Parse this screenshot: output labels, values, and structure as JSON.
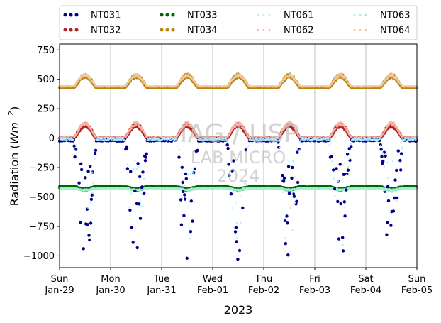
{
  "chart_data": {
    "type": "scatter",
    "xlabel": "2023",
    "ylabel": "Radiation (Wm^-2)",
    "ylabel_main": "Radiation (",
    "ylabel_unit": "Wm",
    "ylabel_exp": "−2",
    "ylabel_close": ")",
    "ylim": [
      -1100,
      800
    ],
    "xlim": [
      0,
      7
    ],
    "yticks": [
      750,
      500,
      250,
      0,
      -250,
      -500,
      -750,
      -1000
    ],
    "ytick_labels": [
      "750",
      "500",
      "250",
      "0",
      "−250",
      "−500",
      "−750",
      "−1000"
    ],
    "xticks": [
      {
        "x": 0,
        "day": "Sun",
        "date": "Jan-29"
      },
      {
        "x": 1,
        "day": "Mon",
        "date": "Jan-30"
      },
      {
        "x": 2,
        "day": "Tue",
        "date": "Jan-31"
      },
      {
        "x": 3,
        "day": "Wed",
        "date": "Feb-01"
      },
      {
        "x": 4,
        "day": "Thu",
        "date": "Feb-02"
      },
      {
        "x": 5,
        "day": "Fri",
        "date": "Feb-03"
      },
      {
        "x": 6,
        "day": "Sat",
        "date": "Feb-04"
      },
      {
        "x": 7,
        "day": "Sun",
        "date": "Feb-05"
      }
    ],
    "grid": "vertical",
    "legend_position": "top",
    "watermark": [
      "IAG / USP",
      "LAB MICRO",
      "2024"
    ],
    "series": [
      {
        "name": "NT031",
        "color": "#00008b",
        "style": "dot",
        "baseline": -15,
        "day_amp": -1000,
        "night_noise": 20
      },
      {
        "name": "NT032",
        "color": "#b22222",
        "style": "dot",
        "baseline": 0,
        "day_amp": 110,
        "night_noise": 5
      },
      {
        "name": "NT033",
        "color": "#006400",
        "style": "dot",
        "baseline": -415,
        "day_amp": -20,
        "night_noise": 12
      },
      {
        "name": "NT034",
        "color": "#b8860b",
        "style": "dot",
        "baseline": 430,
        "day_amp": 100,
        "night_noise": 6
      },
      {
        "name": "NT061",
        "color": "#b0f0ff",
        "style": "faint",
        "baseline": -10,
        "day_amp": -950,
        "night_noise": 20
      },
      {
        "name": "NT062",
        "color": "#f4b8a8",
        "style": "faint",
        "baseline": 5,
        "day_amp": 120,
        "night_noise": 5
      },
      {
        "name": "NT063",
        "color": "#a0f0d0",
        "style": "faint",
        "baseline": -425,
        "day_amp": -15,
        "night_noise": 12
      },
      {
        "name": "NT064",
        "color": "#f0c8a0",
        "style": "faint",
        "baseline": 440,
        "day_amp": 95,
        "night_noise": 6
      }
    ]
  }
}
